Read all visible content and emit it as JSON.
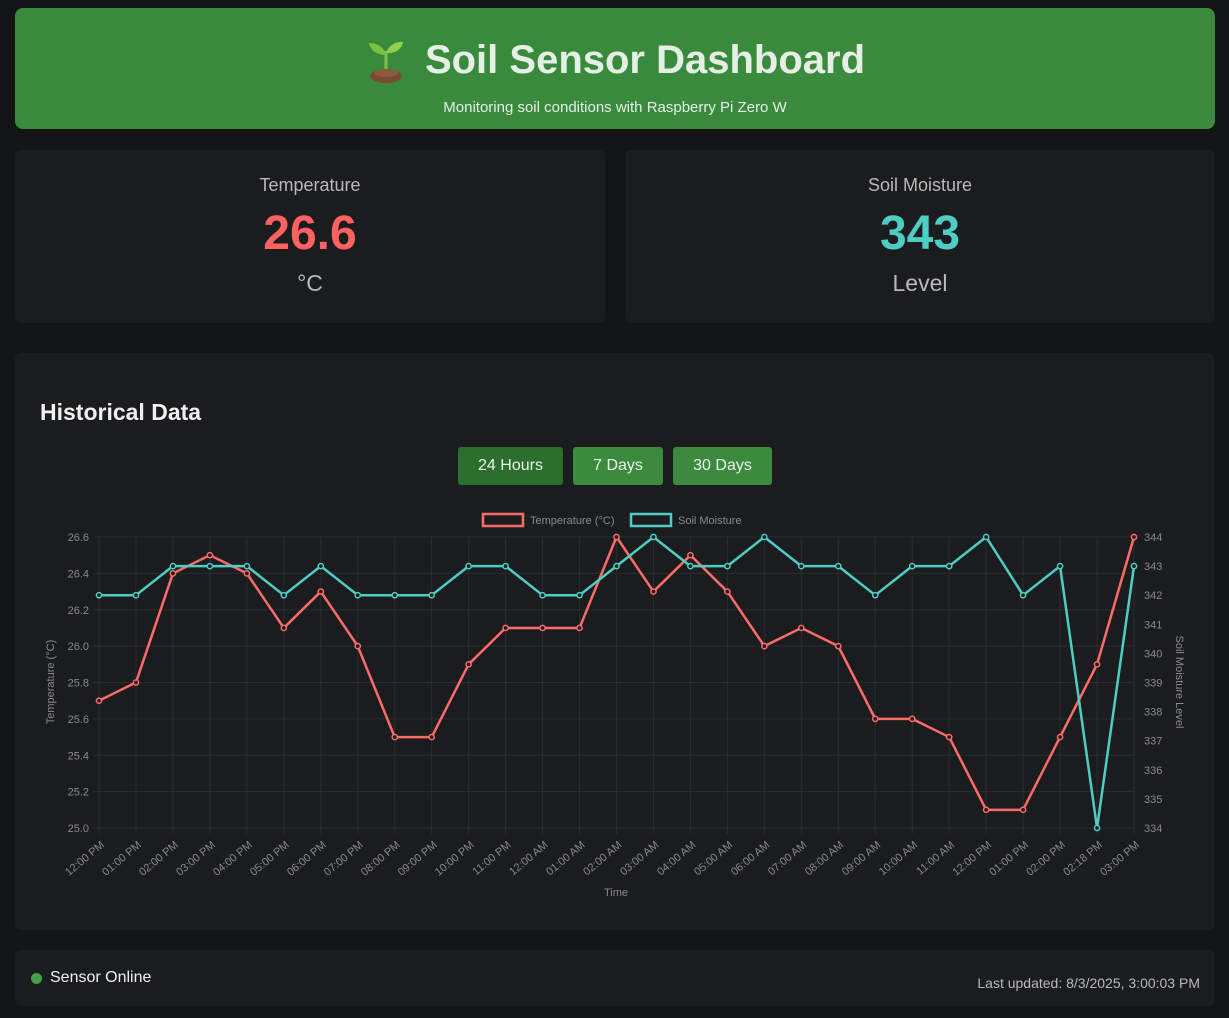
{
  "header": {
    "title": "Soil Sensor Dashboard",
    "subtitle": "Monitoring soil conditions with Raspberry Pi Zero W",
    "icon": "seedling-icon"
  },
  "cards": {
    "temperature": {
      "label": "Temperature",
      "value": "26.6",
      "unit": "°C",
      "color": "#ff6161"
    },
    "moisture": {
      "label": "Soil Moisture",
      "value": "343",
      "unit": "Level",
      "color": "#4ecdc4"
    }
  },
  "history": {
    "title": "Historical Data",
    "buttons": [
      {
        "label": "24 Hours",
        "active": true
      },
      {
        "label": "7 Days",
        "active": false
      },
      {
        "label": "30 Days",
        "active": false
      }
    ]
  },
  "chart_data": {
    "type": "line",
    "x": [
      "12:00 PM",
      "01:00 PM",
      "02:00 PM",
      "03:00 PM",
      "04:00 PM",
      "05:00 PM",
      "06:00 PM",
      "07:00 PM",
      "08:00 PM",
      "09:00 PM",
      "10:00 PM",
      "11:00 PM",
      "12:00 AM",
      "01:00 AM",
      "02:00 AM",
      "03:00 AM",
      "04:00 AM",
      "05:00 AM",
      "06:00 AM",
      "07:00 AM",
      "08:00 AM",
      "09:00 AM",
      "10:00 AM",
      "11:00 AM",
      "12:00 PM",
      "01:00 PM",
      "02:00 PM",
      "02:18 PM",
      "03:00 PM"
    ],
    "xlabel": "Time",
    "series": [
      {
        "name": "Temperature (°C)",
        "axis": "left",
        "color": "#ff6b6b",
        "values": [
          25.7,
          25.8,
          26.4,
          26.5,
          26.4,
          26.1,
          26.3,
          26.0,
          25.5,
          25.5,
          25.9,
          26.1,
          26.1,
          26.1,
          26.6,
          26.3,
          26.5,
          26.3,
          26.0,
          26.1,
          26.0,
          25.6,
          25.6,
          25.5,
          25.1,
          25.1,
          25.5,
          25.9,
          26.6
        ]
      },
      {
        "name": "Soil Moisture",
        "axis": "right",
        "color": "#4ecdc4",
        "values": [
          342,
          342,
          343,
          343,
          343,
          342,
          343,
          342,
          342,
          342,
          343,
          343,
          342,
          342,
          343,
          344,
          343,
          343,
          344,
          343,
          343,
          342,
          343,
          343,
          344,
          342,
          343,
          334,
          343
        ]
      }
    ],
    "y_left": {
      "label": "Temperature (°C)",
      "min": 25.0,
      "max": 26.6,
      "ticks": [
        25.0,
        25.2,
        25.4,
        25.6,
        25.8,
        26.0,
        26.2,
        26.4,
        26.6
      ]
    },
    "y_right": {
      "label": "Soil Moisture Level",
      "min": 334,
      "max": 344,
      "ticks": [
        334,
        335,
        336,
        337,
        338,
        339,
        340,
        341,
        342,
        343,
        344
      ]
    },
    "legend": "top-center",
    "grid": true
  },
  "footer": {
    "status": "Sensor Online",
    "status_color": "#43a047",
    "updated": "Last updated: 8/3/2025, 3:00:03 PM"
  }
}
